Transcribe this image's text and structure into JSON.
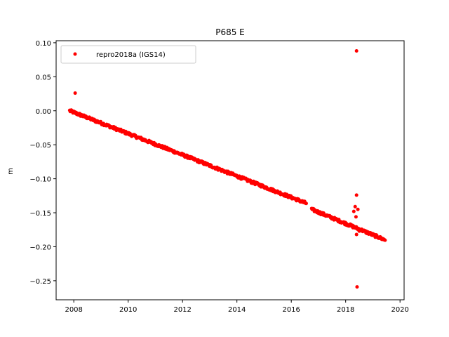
{
  "chart_data": {
    "type": "scatter",
    "title": "P685 E",
    "xlabel": "",
    "ylabel": "m",
    "xlim": [
      2007.35,
      2020.15
    ],
    "ylim": [
      -0.278,
      0.103
    ],
    "xticks": [
      2008,
      2010,
      2012,
      2014,
      2016,
      2018,
      2020
    ],
    "yticks": [
      0.1,
      0.05,
      0.0,
      -0.05,
      -0.1,
      -0.15,
      -0.2,
      -0.25
    ],
    "ytick_labels": [
      "0.10",
      "0.05",
      "0.00",
      "−0.05",
      "−0.10",
      "−0.15",
      "−0.20",
      "−0.25"
    ],
    "grid": false,
    "legend_position": "top-left",
    "series": [
      {
        "name": "repro2018a (IGS14)",
        "color": "#ff0000",
        "marker": "circle",
        "trend": {
          "comment_free": true,
          "segments": [
            {
              "x_start": 2007.85,
              "x_end": 2016.55,
              "y_start": 0.0,
              "y_end": -0.136
            },
            {
              "x_start": 2016.75,
              "x_end": 2019.45,
              "y_start": -0.145,
              "y_end": -0.19
            }
          ]
        },
        "outliers": [
          {
            "x": 2008.05,
            "y": 0.026
          },
          {
            "x": 2018.4,
            "y": 0.088
          },
          {
            "x": 2018.4,
            "y": -0.124
          },
          {
            "x": 2018.35,
            "y": -0.141
          },
          {
            "x": 2018.45,
            "y": -0.145
          },
          {
            "x": 2018.3,
            "y": -0.148
          },
          {
            "x": 2018.38,
            "y": -0.156
          },
          {
            "x": 2018.4,
            "y": -0.182
          },
          {
            "x": 2018.5,
            "y": -0.177
          },
          {
            "x": 2018.42,
            "y": -0.259
          }
        ]
      }
    ]
  }
}
